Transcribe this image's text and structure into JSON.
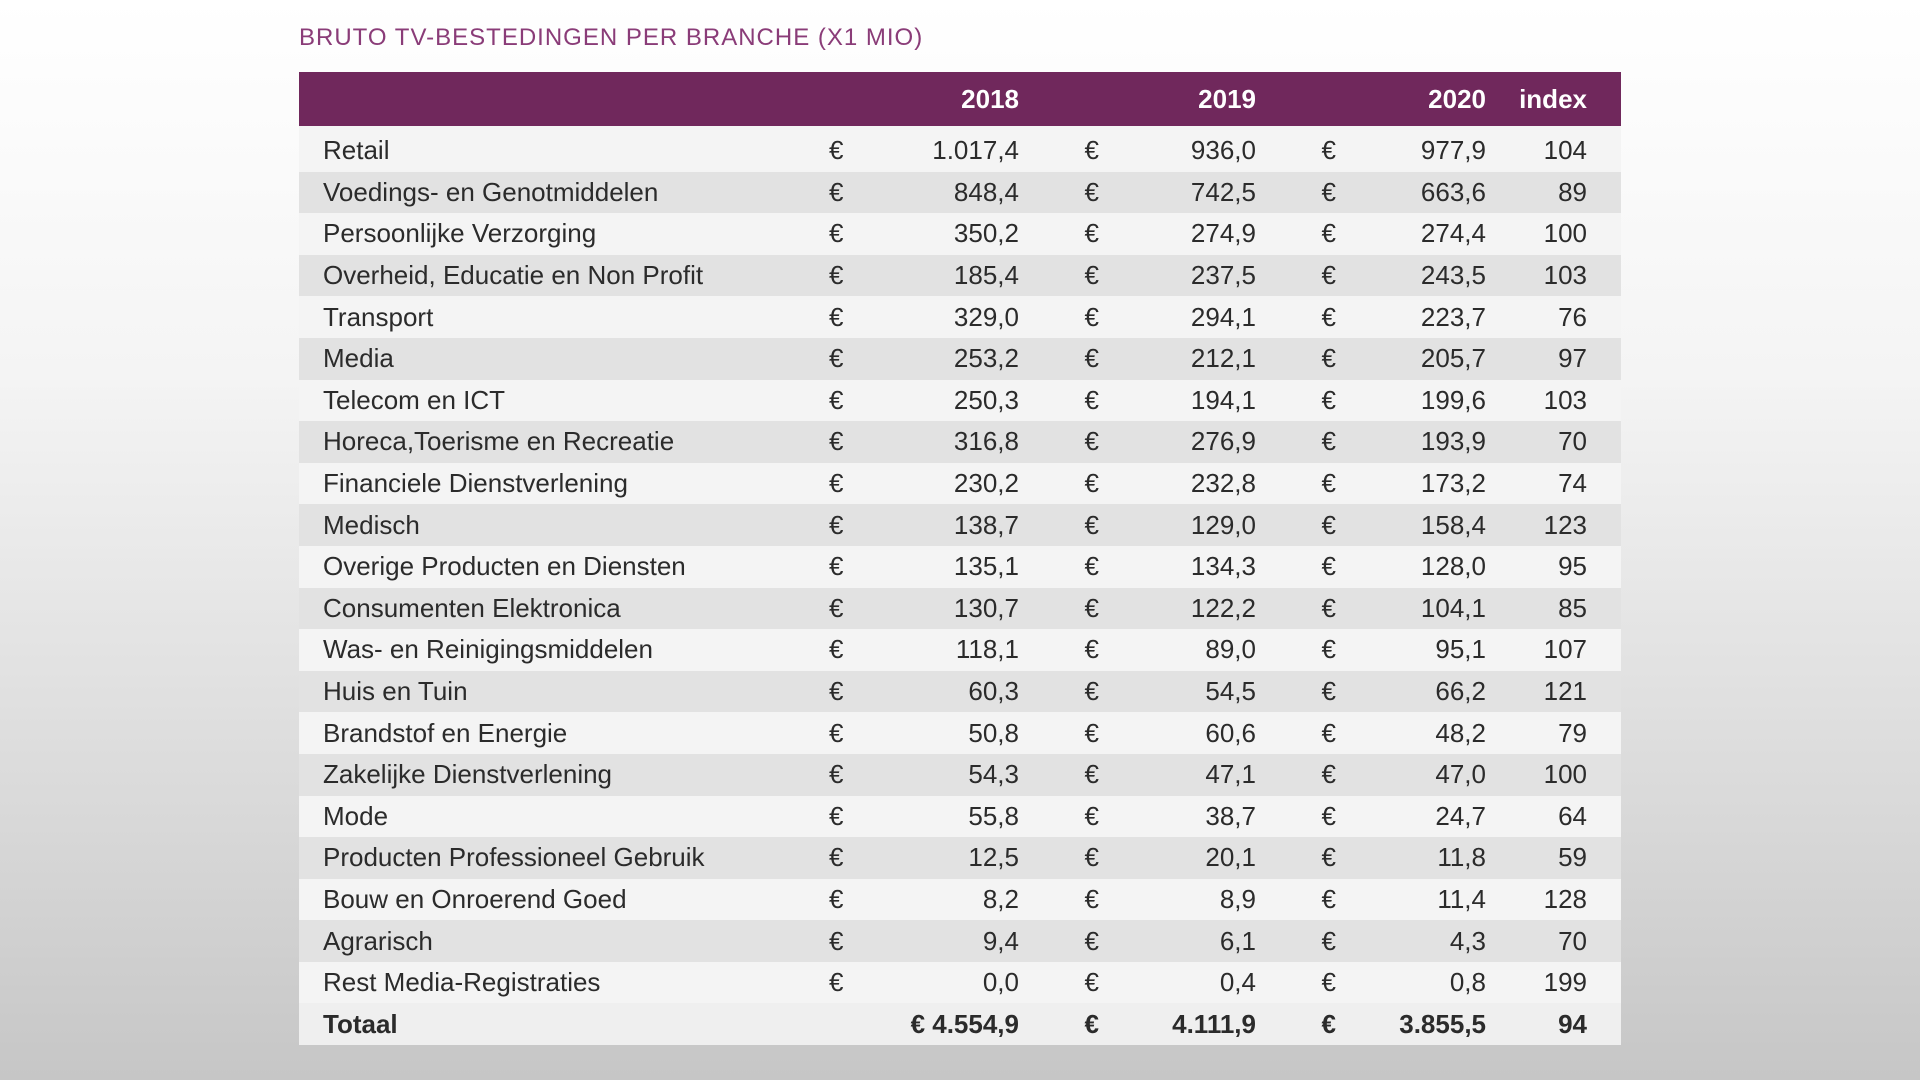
{
  "chart_data": {
    "type": "table",
    "title": "BRUTO TV-BESTEDINGEN PER BRANCHE (X1 MIO)",
    "currency_symbol": "€",
    "columns": [
      "2018",
      "2019",
      "2020",
      "index"
    ],
    "rows": [
      {
        "label": "Retail",
        "y2018": "1.017,4",
        "y2019": "936,0",
        "y2020": "977,9",
        "index": "104"
      },
      {
        "label": "Voedings- en Genotmiddelen",
        "y2018": "848,4",
        "y2019": "742,5",
        "y2020": "663,6",
        "index": "89"
      },
      {
        "label": "Persoonlijke Verzorging",
        "y2018": "350,2",
        "y2019": "274,9",
        "y2020": "274,4",
        "index": "100"
      },
      {
        "label": "Overheid, Educatie en Non Profit",
        "y2018": "185,4",
        "y2019": "237,5",
        "y2020": "243,5",
        "index": "103"
      },
      {
        "label": "Transport",
        "y2018": "329,0",
        "y2019": "294,1",
        "y2020": "223,7",
        "index": "76"
      },
      {
        "label": "Media",
        "y2018": "253,2",
        "y2019": "212,1",
        "y2020": "205,7",
        "index": "97"
      },
      {
        "label": "Telecom en ICT",
        "y2018": "250,3",
        "y2019": "194,1",
        "y2020": "199,6",
        "index": "103"
      },
      {
        "label": "Horeca,Toerisme en Recreatie",
        "y2018": "316,8",
        "y2019": "276,9",
        "y2020": "193,9",
        "index": "70"
      },
      {
        "label": "Financiele Dienstverlening",
        "y2018": "230,2",
        "y2019": "232,8",
        "y2020": "173,2",
        "index": "74"
      },
      {
        "label": "Medisch",
        "y2018": "138,7",
        "y2019": "129,0",
        "y2020": "158,4",
        "index": "123"
      },
      {
        "label": "Overige Producten en Diensten",
        "y2018": "135,1",
        "y2019": "134,3",
        "y2020": "128,0",
        "index": "95"
      },
      {
        "label": "Consumenten Elektronica",
        "y2018": "130,7",
        "y2019": "122,2",
        "y2020": "104,1",
        "index": "85"
      },
      {
        "label": "Was- en Reinigingsmiddelen",
        "y2018": "118,1",
        "y2019": "89,0",
        "y2020": "95,1",
        "index": "107"
      },
      {
        "label": "Huis en Tuin",
        "y2018": "60,3",
        "y2019": "54,5",
        "y2020": "66,2",
        "index": "121"
      },
      {
        "label": "Brandstof en Energie",
        "y2018": "50,8",
        "y2019": "60,6",
        "y2020": "48,2",
        "index": "79"
      },
      {
        "label": "Zakelijke Dienstverlening",
        "y2018": "54,3",
        "y2019": "47,1",
        "y2020": "47,0",
        "index": "100"
      },
      {
        "label": "Mode",
        "y2018": "55,8",
        "y2019": "38,7",
        "y2020": "24,7",
        "index": "64"
      },
      {
        "label": "Producten Professioneel Gebruik",
        "y2018": "12,5",
        "y2019": "20,1",
        "y2020": "11,8",
        "index": "59"
      },
      {
        "label": "Bouw en Onroerend Goed",
        "y2018": "8,2",
        "y2019": "8,9",
        "y2020": "11,4",
        "index": "128"
      },
      {
        "label": "Agrarisch",
        "y2018": "9,4",
        "y2019": "6,1",
        "y2020": "4,3",
        "index": "70"
      },
      {
        "label": "Rest Media-Registraties",
        "y2018": "0,0",
        "y2019": "0,4",
        "y2020": "0,8",
        "index": "199"
      }
    ],
    "total": {
      "label": "Totaal",
      "y2018": "€ 4.554,9",
      "y2019": "4.111,9",
      "y2020": "3.855,5",
      "index": "94"
    }
  },
  "colors": {
    "header_bg": "#70285c",
    "title": "#8a3c78",
    "row_light": "#f4f4f4",
    "row_dark": "#e2e2e2"
  }
}
